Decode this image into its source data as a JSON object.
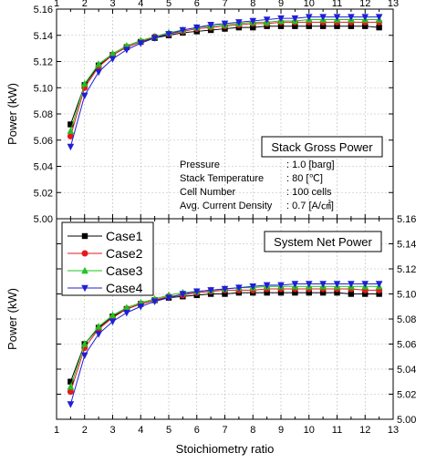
{
  "chart_data": [
    {
      "panel": "top",
      "type": "line",
      "ylabel": "Power (kW)",
      "xlabel": "",
      "xlim": [
        1,
        13
      ],
      "ylim": [
        5.0,
        5.16
      ],
      "x_ticks": [
        1,
        2,
        3,
        4,
        5,
        6,
        7,
        8,
        9,
        10,
        11,
        12,
        13
      ],
      "y_ticks": [
        5.0,
        5.02,
        5.04,
        5.06,
        5.08,
        5.1,
        5.12,
        5.14,
        5.16
      ],
      "y_tick_labels": [
        "5.00",
        "5.02",
        "5.04",
        "5.06",
        "5.08",
        "5.10",
        "5.12",
        "5.14",
        "5.16"
      ],
      "grid": true,
      "title_box": "Stack Gross Power",
      "conditions": [
        {
          "label": "Pressure",
          "value": ": 1.0 [barg]"
        },
        {
          "label": "Stack Temperature",
          "value": ": 80 [℃]"
        },
        {
          "label": "Cell Number",
          "value": ": 100 cells"
        },
        {
          "label": "Avg. Current Density",
          "value": ": 0.7 [A/㎠]"
        }
      ],
      "x": [
        1.5,
        2.0,
        2.5,
        3.0,
        3.5,
        4.0,
        4.5,
        5.0,
        5.5,
        6.0,
        6.5,
        7.0,
        7.5,
        8.0,
        8.5,
        9.0,
        9.5,
        10.0,
        10.5,
        11.0,
        11.5,
        12.0,
        12.5
      ],
      "series": [
        {
          "name": "Case1",
          "color": "#000000",
          "marker": "square",
          "values": [
            5.072,
            5.102,
            5.117,
            5.125,
            5.131,
            5.135,
            5.138,
            5.14,
            5.142,
            5.143,
            5.144,
            5.145,
            5.146,
            5.146,
            5.147,
            5.147,
            5.147,
            5.147,
            5.147,
            5.147,
            5.147,
            5.147,
            5.146
          ]
        },
        {
          "name": "Case2",
          "color": "#e41a1c",
          "marker": "circle",
          "values": [
            5.063,
            5.1,
            5.116,
            5.125,
            5.131,
            5.135,
            5.139,
            5.141,
            5.143,
            5.145,
            5.146,
            5.147,
            5.148,
            5.149,
            5.149,
            5.15,
            5.15,
            5.15,
            5.15,
            5.15,
            5.15,
            5.15,
            5.15
          ]
        },
        {
          "name": "Case3",
          "color": "#21c21f",
          "marker": "triangle-up",
          "values": [
            5.067,
            5.103,
            5.118,
            5.126,
            5.132,
            5.136,
            5.139,
            5.142,
            5.144,
            5.146,
            5.147,
            5.148,
            5.149,
            5.15,
            5.15,
            5.151,
            5.151,
            5.152,
            5.152,
            5.152,
            5.152,
            5.152,
            5.152
          ]
        },
        {
          "name": "Case4",
          "color": "#1f1fd6",
          "marker": "triangle-down",
          "values": [
            5.055,
            5.094,
            5.112,
            5.122,
            5.129,
            5.134,
            5.138,
            5.141,
            5.144,
            5.146,
            5.148,
            5.149,
            5.15,
            5.151,
            5.152,
            5.153,
            5.153,
            5.154,
            5.154,
            5.154,
            5.154,
            5.154,
            5.154
          ]
        }
      ]
    },
    {
      "panel": "bottom",
      "type": "line",
      "ylabel": "Power (kW)",
      "xlabel": "Stoichiometry ratio",
      "xlim": [
        1,
        13
      ],
      "ylim": [
        5.0,
        5.16
      ],
      "x_ticks": [
        1,
        2,
        3,
        4,
        5,
        6,
        7,
        8,
        9,
        10,
        11,
        12,
        13
      ],
      "y_ticks": [
        5.0,
        5.02,
        5.04,
        5.06,
        5.08,
        5.1,
        5.12,
        5.14,
        5.16
      ],
      "y_tick_labels": [
        "5.00",
        "5.02",
        "5.04",
        "5.06",
        "5.08",
        "5.10",
        "5.12",
        "5.14",
        "5.16"
      ],
      "grid": true,
      "title_box": "System Net Power",
      "legend_placement": "top-left",
      "x": [
        1.5,
        2.0,
        2.5,
        3.0,
        3.5,
        4.0,
        4.5,
        5.0,
        5.5,
        6.0,
        6.5,
        7.0,
        7.5,
        8.0,
        8.5,
        9.0,
        9.5,
        10.0,
        10.5,
        11.0,
        11.5,
        12.0,
        12.5
      ],
      "series": [
        {
          "name": "Case1",
          "color": "#000000",
          "marker": "square",
          "values": [
            5.03,
            5.06,
            5.073,
            5.082,
            5.088,
            5.092,
            5.095,
            5.097,
            5.098,
            5.099,
            5.1,
            5.1,
            5.101,
            5.101,
            5.101,
            5.101,
            5.101,
            5.101,
            5.101,
            5.101,
            5.1,
            5.1,
            5.1
          ]
        },
        {
          "name": "Case2",
          "color": "#e41a1c",
          "marker": "circle",
          "values": [
            5.022,
            5.057,
            5.072,
            5.081,
            5.088,
            5.092,
            5.095,
            5.098,
            5.099,
            5.101,
            5.102,
            5.103,
            5.103,
            5.103,
            5.104,
            5.104,
            5.104,
            5.104,
            5.104,
            5.104,
            5.104,
            5.103,
            5.103
          ]
        },
        {
          "name": "Case3",
          "color": "#21c21f",
          "marker": "triangle-up",
          "values": [
            5.026,
            5.06,
            5.074,
            5.083,
            5.089,
            5.093,
            5.096,
            5.099,
            5.101,
            5.102,
            5.103,
            5.104,
            5.105,
            5.105,
            5.106,
            5.106,
            5.106,
            5.106,
            5.106,
            5.106,
            5.106,
            5.106,
            5.106
          ]
        },
        {
          "name": "Case4",
          "color": "#1f1fd6",
          "marker": "triangle-down",
          "values": [
            5.012,
            5.051,
            5.068,
            5.078,
            5.085,
            5.09,
            5.094,
            5.097,
            5.1,
            5.102,
            5.103,
            5.104,
            5.105,
            5.106,
            5.107,
            5.107,
            5.108,
            5.108,
            5.108,
            5.108,
            5.108,
            5.108,
            5.108
          ]
        }
      ]
    }
  ]
}
